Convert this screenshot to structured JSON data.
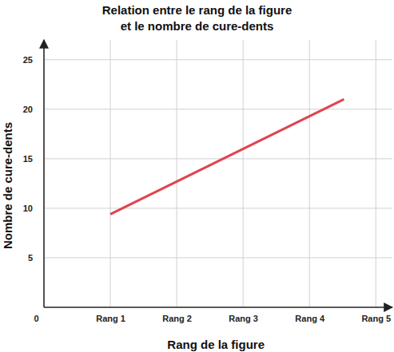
{
  "chart_data": {
    "type": "line",
    "title": "Relation entre le rang de la figure\net le nombre de cure-dents",
    "x_label": "Rang de la figure",
    "y_label": "Nombre de cure-dents",
    "series": [
      {
        "name": null,
        "color": "#e0434f",
        "x": [
          1,
          4.52
        ],
        "values": [
          9.4,
          21
        ]
      }
    ],
    "xlim": [
      0,
      5.25
    ],
    "xticks": [
      0,
      {
        "value": 1,
        "label": "Rang 1"
      },
      {
        "value": 2,
        "label": "Rang 2"
      },
      {
        "value": 3,
        "label": "Rang 3"
      },
      {
        "value": 4,
        "label": "Rang 4"
      },
      {
        "value": 5,
        "label": "Rang 5"
      }
    ],
    "ylim": [
      0,
      27
    ],
    "yticks": [
      5,
      10,
      15,
      20,
      25
    ],
    "grid": true
  }
}
